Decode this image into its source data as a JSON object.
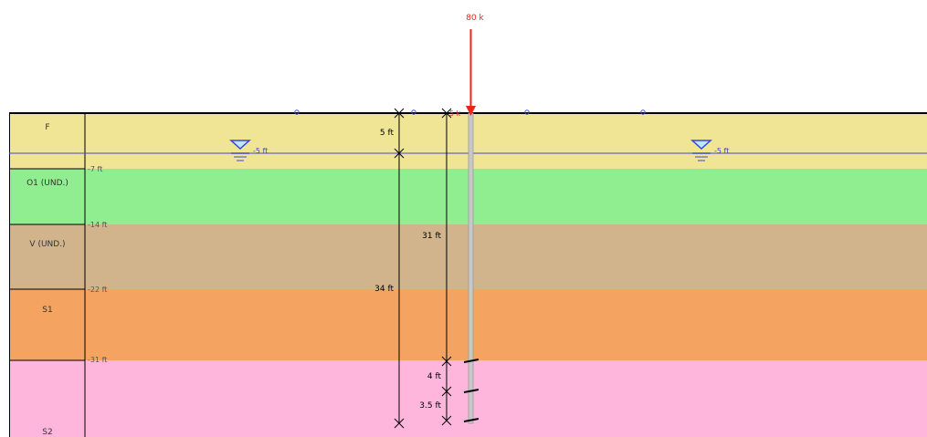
{
  "load": {
    "label": "80 k",
    "color": "#e8231e"
  },
  "pile_top_label": "5 k",
  "water_table": {
    "left_label": "-5 ft",
    "right_label": "-5 ft",
    "color": "#3b46d6"
  },
  "layers": [
    {
      "name": "F",
      "color": "#f0e595"
    },
    {
      "name": "O1 (UND.)",
      "color": "#90ee90"
    },
    {
      "name": "V (UND.)",
      "color": "#d2b48c"
    },
    {
      "name": "S1",
      "color": "#f4a460"
    },
    {
      "name": "S2",
      "color": "#ffb6dc"
    }
  ],
  "depth_labels": [
    "-7 ft",
    "-14 ft",
    "-22 ft",
    "-31 ft"
  ],
  "dimensions": {
    "water_depth": "5 ft",
    "length_to_marker": "31 ft",
    "total_length": "34 ft",
    "segment_1": "4 ft",
    "segment_2": "3.5 ft"
  }
}
